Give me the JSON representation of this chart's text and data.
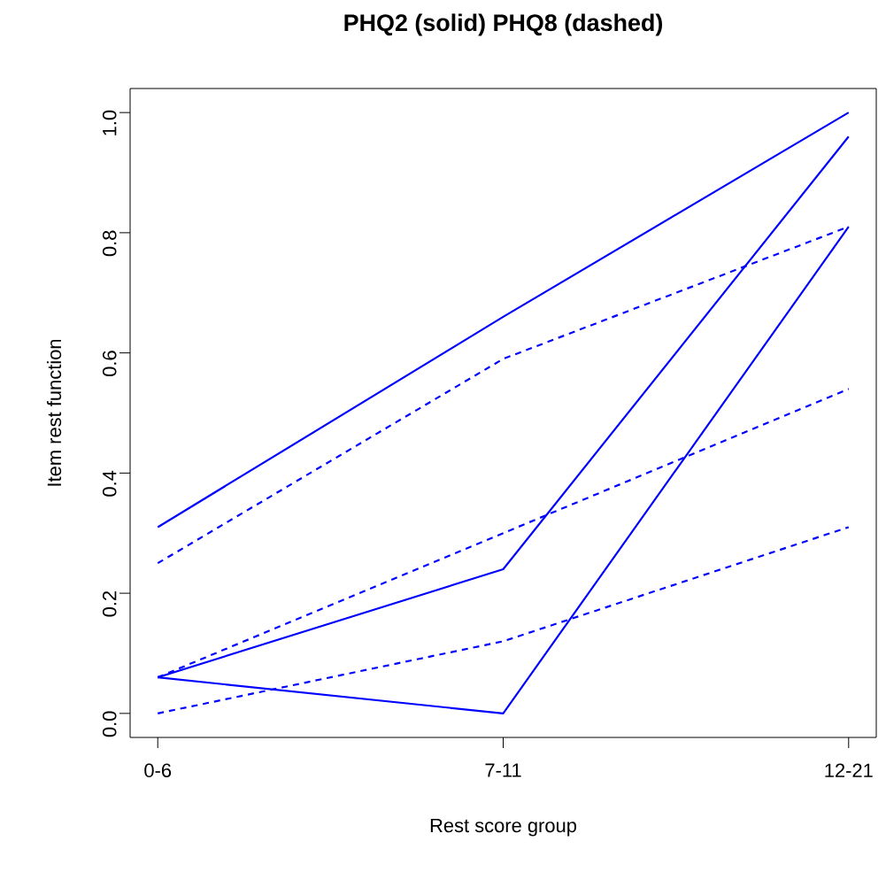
{
  "chart_data": {
    "type": "line",
    "title": "PHQ2 (solid) PHQ8 (dashed)",
    "xlabel": "Rest score group",
    "ylabel": "Item rest function",
    "categories": [
      "0-6",
      "7-11",
      "12-21"
    ],
    "series": [
      {
        "color": "#0000ff",
        "line_style": "solid",
        "values": [
          0.31,
          0.66,
          1.0
        ]
      },
      {
        "color": "#0000ff",
        "line_style": "solid",
        "values": [
          0.06,
          0.24,
          0.96
        ]
      },
      {
        "color": "#0000ff",
        "line_style": "solid",
        "values": [
          0.06,
          0.0,
          0.81
        ]
      },
      {
        "color": "#0000ff",
        "line_style": "dashed",
        "values": [
          0.25,
          0.59,
          0.81
        ]
      },
      {
        "color": "#0000ff",
        "line_style": "dashed",
        "values": [
          0.06,
          0.3,
          0.54
        ]
      },
      {
        "color": "#0000ff",
        "line_style": "dashed",
        "values": [
          0.0,
          0.12,
          0.31
        ]
      }
    ],
    "ylim": [
      -0.04,
      1.04
    ],
    "yticks": [
      {
        "value": 0,
        "label": "0.0"
      },
      {
        "value": 0.2,
        "label": "0.2"
      },
      {
        "value": 0.4,
        "label": "0.4"
      },
      {
        "value": 0.6,
        "label": "0.6"
      },
      {
        "value": 0.8,
        "label": "0.8"
      },
      {
        "value": 1.0,
        "label": "1.0"
      }
    ],
    "grid": false,
    "marker": "none"
  }
}
